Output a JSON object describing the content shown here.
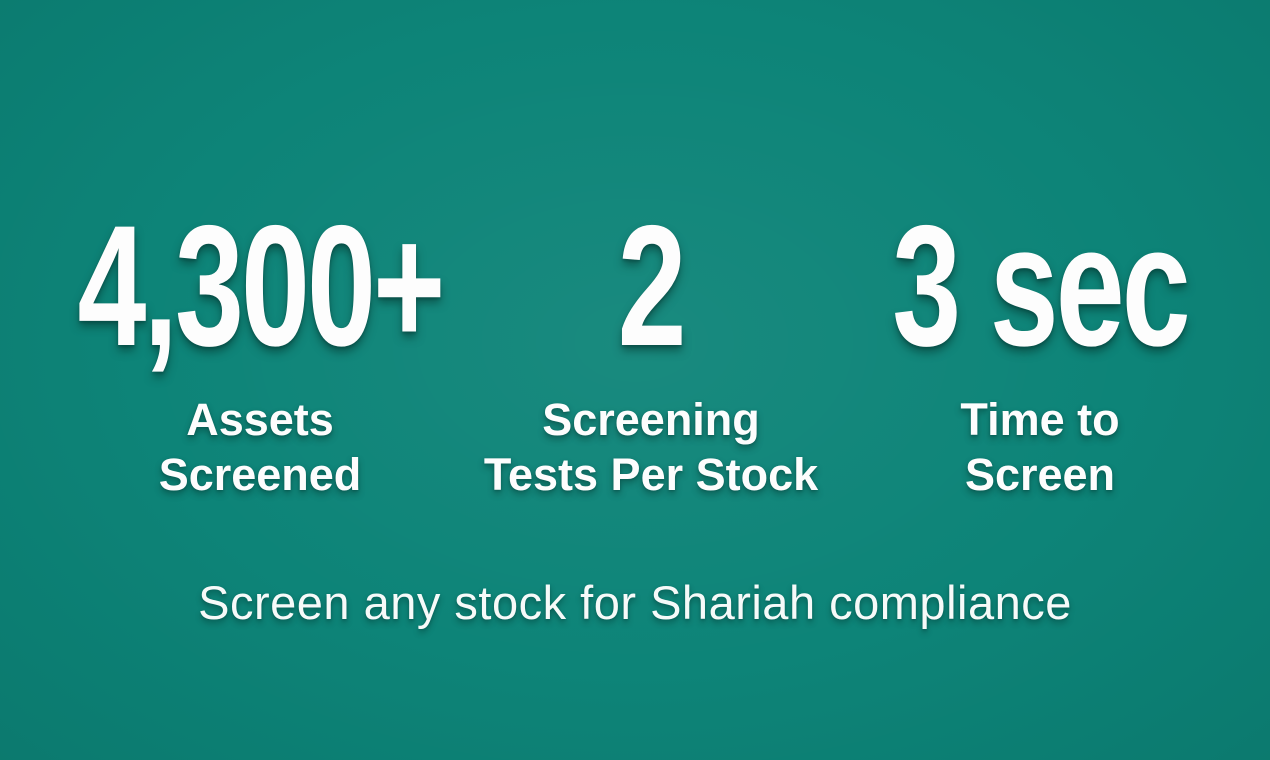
{
  "theme": {
    "background_color": "#0d8478",
    "text_color": "#fdfdfd"
  },
  "stats": [
    {
      "value": "4,300+",
      "label_line1": "Assets",
      "label_line2": "Screened"
    },
    {
      "value": "2",
      "label_line1": "Screening",
      "label_line2": "Tests Per Stock"
    },
    {
      "value": "3 sec",
      "label_line1": "Time to",
      "label_line2": "Screen"
    }
  ],
  "tagline": "Screen any stock for Shariah compliance"
}
